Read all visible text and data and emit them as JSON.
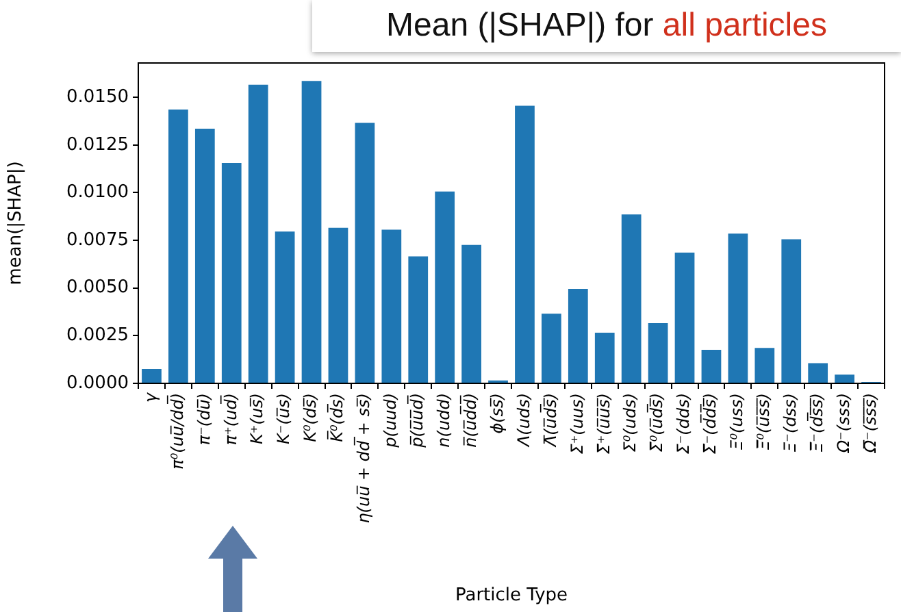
{
  "chart_data": {
    "type": "bar",
    "title": "Mean (|SHAP|) for all particles",
    "xlabel": "Particle Type",
    "ylabel": "mean(|SHAP|)",
    "categories": [
      "γ",
      "π⁰(uu̅/dd̅)",
      "π⁻(du̅)",
      "π⁺(ud̅)",
      "K⁺(us̅)",
      "K⁻(u̅s)",
      "K⁰(ds̅)",
      "K̅⁰(d̅s)",
      "η(uu̅ + dd̅ + ss̅)",
      "p(uud)",
      "p̅(u̅u̅d̅)",
      "n(udd)",
      "n̅(u̅d̅d̅)",
      "ϕ(ss̅)",
      "Λ(uds)",
      "Λ̅(u̅d̅s̅)",
      "Σ⁺(uus)",
      "Σ̅⁺(u̅u̅s̅)",
      "Σ⁰(uds)",
      "Σ̅⁰(u̅d̅s̅)",
      "Σ⁻(dds)",
      "Σ̅⁻(d̅d̅s̅)",
      "Ξ⁰(uss)",
      "Ξ̅⁰(u̅s̅s̅)",
      "Ξ⁻(dss)",
      "Ξ̅⁻(d̅s̅s̅)",
      "Ω⁻(sss)",
      "Ω̅⁻(s̅s̅s̅)"
    ],
    "values": [
      0.0008,
      0.0144,
      0.0134,
      0.0116,
      0.0157,
      0.008,
      0.0159,
      0.0082,
      0.0137,
      0.0081,
      0.0067,
      0.0101,
      0.0073,
      0.0002,
      0.0146,
      0.0037,
      0.005,
      0.0027,
      0.0089,
      0.0032,
      0.0069,
      0.0018,
      0.0079,
      0.0019,
      0.0076,
      0.0011,
      0.0005,
      0.0001
    ],
    "color": "#1f77b4",
    "ylim": [
      0,
      0.0168
    ],
    "yticks": [
      {
        "value": 0,
        "label": "0.0000"
      },
      {
        "value": 0.0025,
        "label": "0.0025"
      },
      {
        "value": 0.005,
        "label": "0.0050"
      },
      {
        "value": 0.0075,
        "label": "0.0075"
      },
      {
        "value": 0.01,
        "label": "0.0100"
      },
      {
        "value": 0.0125,
        "label": "0.0125"
      },
      {
        "value": 0.015,
        "label": "0.0150"
      }
    ]
  }
}
